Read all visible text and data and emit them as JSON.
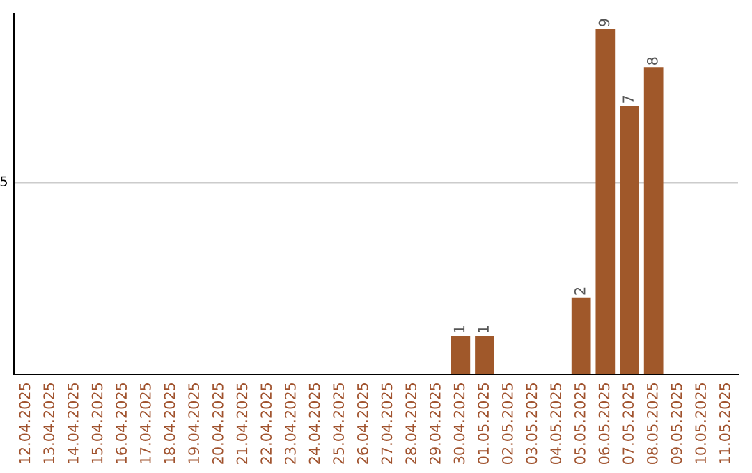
{
  "chart_data": {
    "type": "bar",
    "ylim": [
      0,
      9.4
    ],
    "categories": [
      "12.04.2025",
      "13.04.2025",
      "14.04.2025",
      "15.04.2025",
      "16.04.2025",
      "17.04.2025",
      "18.04.2025",
      "19.04.2025",
      "20.04.2025",
      "21.04.2025",
      "22.04.2025",
      "23.04.2025",
      "24.04.2025",
      "25.04.2025",
      "26.04.2025",
      "27.04.2025",
      "28.04.2025",
      "29.04.2025",
      "30.04.2025",
      "01.05.2025",
      "02.05.2025",
      "03.05.2025",
      "04.05.2025",
      "05.05.2025",
      "06.05.2025",
      "07.05.2025",
      "08.05.2025",
      "09.05.2025",
      "10.05.2025",
      "11.05.2025"
    ],
    "values": [
      null,
      null,
      null,
      null,
      null,
      null,
      null,
      null,
      null,
      null,
      null,
      null,
      null,
      null,
      null,
      null,
      null,
      null,
      1,
      1,
      null,
      null,
      null,
      2,
      9,
      7,
      8,
      null,
      null,
      null
    ],
    "value_labels": [
      null,
      null,
      null,
      null,
      null,
      null,
      null,
      null,
      null,
      null,
      null,
      null,
      null,
      null,
      null,
      null,
      null,
      null,
      "1",
      "1",
      null,
      null,
      null,
      "2",
      "9",
      "7",
      "8",
      null,
      null,
      null
    ],
    "color": "#a0582a",
    "ref_lines": [
      {
        "axis": "y",
        "value": 5,
        "label": "5",
        "color": "#cccccc"
      }
    ]
  }
}
